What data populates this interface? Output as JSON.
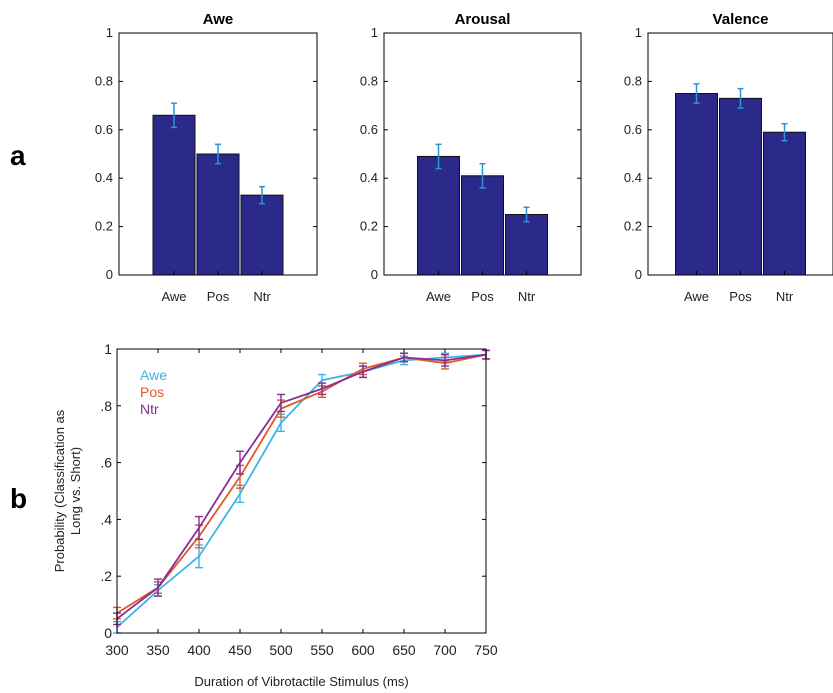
{
  "panels": {
    "a": "a",
    "b": "b"
  },
  "chart_data": [
    {
      "type": "bar",
      "title": "Awe",
      "categories": [
        "Awe",
        "Pos",
        "Ntr"
      ],
      "values": [
        0.66,
        0.5,
        0.33
      ],
      "errors": [
        0.05,
        0.04,
        0.035
      ],
      "ylim": [
        0,
        1
      ],
      "yticks": [
        "0",
        "0.2",
        "0.4",
        "0.6",
        "0.8",
        "1"
      ],
      "bar_color": "#2b2a8a",
      "error_color": "#2e93d6"
    },
    {
      "type": "bar",
      "title": "Arousal",
      "categories": [
        "Awe",
        "Pos",
        "Ntr"
      ],
      "values": [
        0.49,
        0.41,
        0.25
      ],
      "errors": [
        0.05,
        0.05,
        0.03
      ],
      "ylim": [
        0,
        1
      ],
      "yticks": [
        "0",
        "0.2",
        "0.4",
        "0.6",
        "0.8",
        "1"
      ],
      "bar_color": "#2b2a8a",
      "error_color": "#2e93d6"
    },
    {
      "type": "bar",
      "title": "Valence",
      "categories": [
        "Awe",
        "Pos",
        "Ntr"
      ],
      "values": [
        0.75,
        0.73,
        0.59
      ],
      "errors": [
        0.04,
        0.04,
        0.035
      ],
      "ylim": [
        0,
        1
      ],
      "yticks": [
        "0",
        "0.2",
        "0.4",
        "0.6",
        "0.8",
        "1"
      ],
      "bar_color": "#2b2a8a",
      "error_color": "#2e93d6"
    },
    {
      "type": "line",
      "xlabel": "Duration of Vibrotactile Stimulus (ms)",
      "ylabel_line1": "Probability  (Classification as",
      "ylabel_line2": "Long vs. Short)",
      "x": [
        300,
        350,
        400,
        450,
        500,
        550,
        600,
        650,
        700,
        750
      ],
      "xlim": [
        300,
        750
      ],
      "ylim": [
        0,
        1
      ],
      "xticks": [
        "300",
        "350",
        "400",
        "450",
        "500",
        "550",
        "600",
        "650",
        "700",
        "750"
      ],
      "yticks": [
        "0",
        ".2",
        ".4",
        ".6",
        ".8",
        "1"
      ],
      "legend_position": "top-left",
      "series": [
        {
          "name": "Awe",
          "color": "#3db4e6",
          "values": [
            0.02,
            0.15,
            0.27,
            0.49,
            0.74,
            0.89,
            0.92,
            0.96,
            0.97,
            0.98
          ],
          "errors": [
            0.02,
            0.02,
            0.04,
            0.03,
            0.03,
            0.02,
            0.02,
            0.015,
            0.015,
            0.015
          ]
        },
        {
          "name": "Pos",
          "color": "#e0592a",
          "values": [
            0.07,
            0.16,
            0.34,
            0.55,
            0.79,
            0.85,
            0.93,
            0.97,
            0.95,
            0.98
          ],
          "errors": [
            0.02,
            0.02,
            0.04,
            0.04,
            0.03,
            0.02,
            0.02,
            0.015,
            0.02,
            0.015
          ]
        },
        {
          "name": "Ntr",
          "color": "#8a2d92",
          "values": [
            0.05,
            0.16,
            0.37,
            0.6,
            0.81,
            0.86,
            0.92,
            0.97,
            0.96,
            0.98
          ],
          "errors": [
            0.02,
            0.03,
            0.04,
            0.04,
            0.03,
            0.02,
            0.02,
            0.015,
            0.02,
            0.015
          ]
        }
      ]
    }
  ]
}
